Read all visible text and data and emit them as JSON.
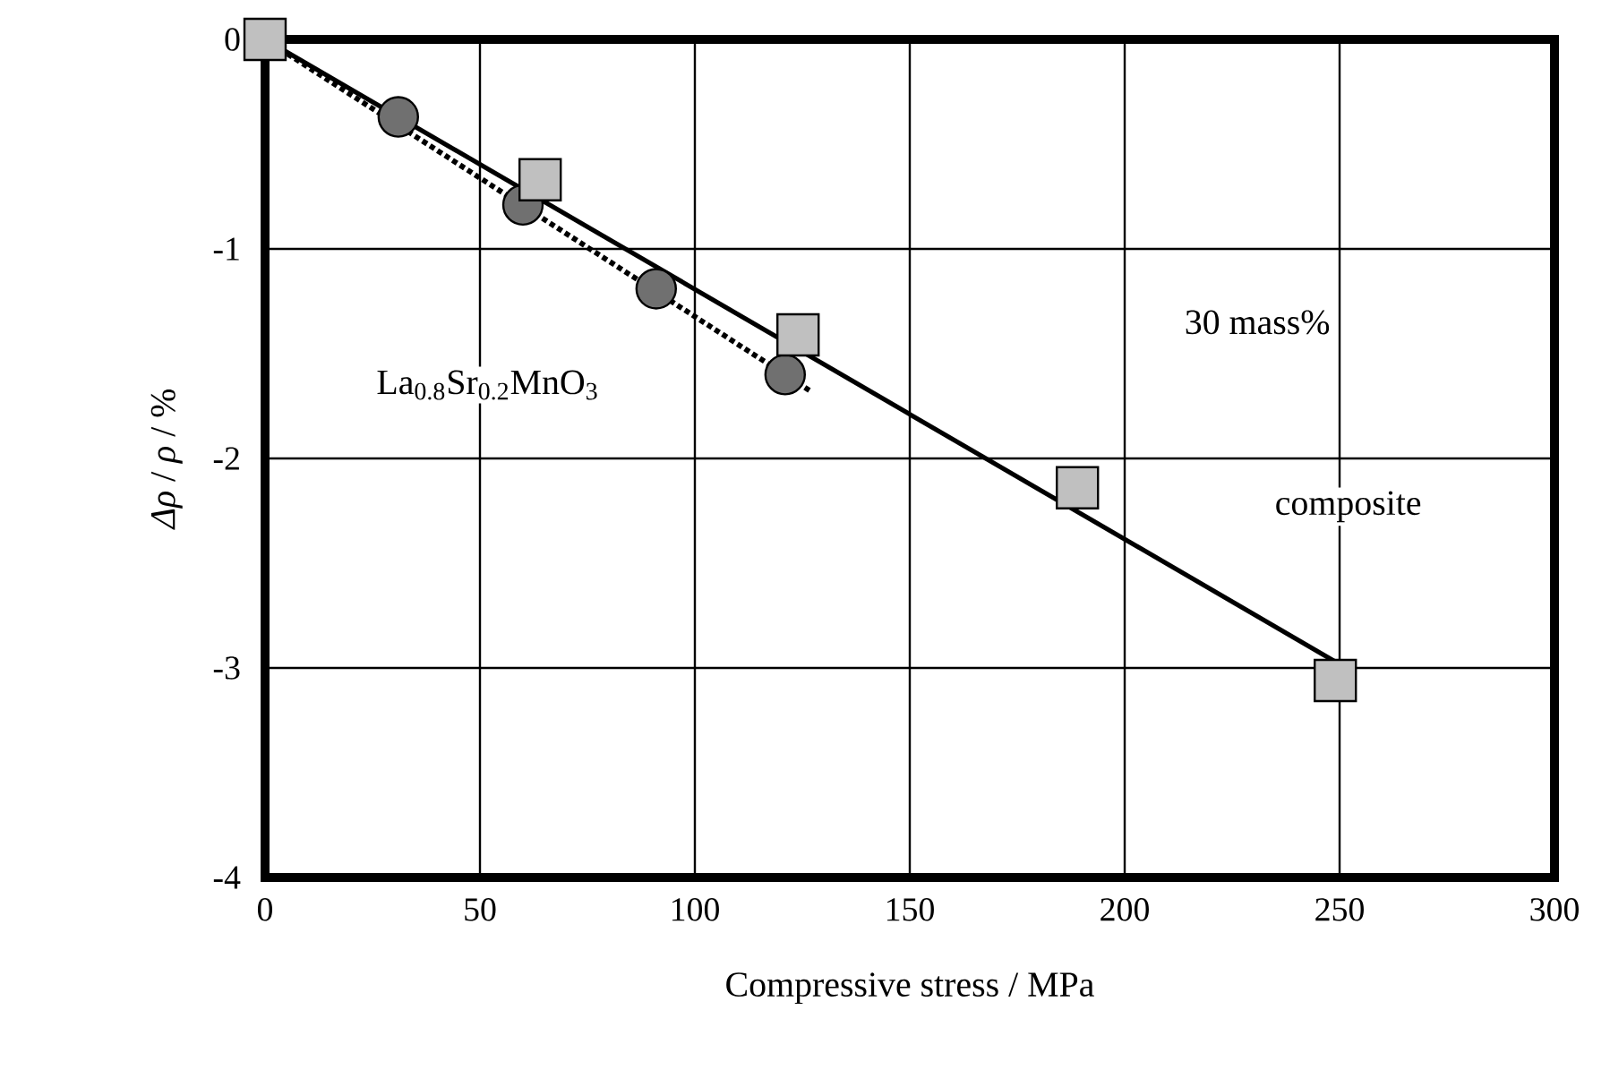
{
  "chart_data": {
    "type": "scatter",
    "xlabel": "Compressive stress / MPa",
    "ylabel": "*Δρ* / *ρ* /   %",
    "xlim": [
      0,
      300
    ],
    "ylim": [
      -4,
      0
    ],
    "xticks": [
      0,
      50,
      100,
      150,
      200,
      250,
      300
    ],
    "yticks": [
      -4,
      -3,
      -2,
      -1,
      0
    ],
    "grid": true,
    "series": [
      {
        "marker": "circle",
        "color": "#707070",
        "x": [
          31,
          60,
          91,
          121
        ],
        "values": [
          -0.37,
          -0.79,
          -1.19,
          -1.6
        ]
      },
      {
        "marker": "square",
        "color": "#c0c0c0",
        "x": [
          0,
          64,
          124,
          189,
          249
        ],
        "values": [
          0,
          -0.67,
          -1.41,
          -2.14,
          -3.06
        ]
      },
      {
        "type": "line",
        "line_style": "dotted",
        "color": "#000000",
        "x": [
          0,
          127
        ],
        "values": [
          0,
          -1.68
        ]
      },
      {
        "type": "line",
        "line_style": "solid",
        "color": "#000000",
        "x": [
          0,
          249
        ],
        "values": [
          0,
          -2.97
        ]
      }
    ],
    "annotations": [
      "La$_{0.8}$Sr$_{0.2}$MnO$_{3}$",
      "30 mass%",
      "composite"
    ]
  }
}
